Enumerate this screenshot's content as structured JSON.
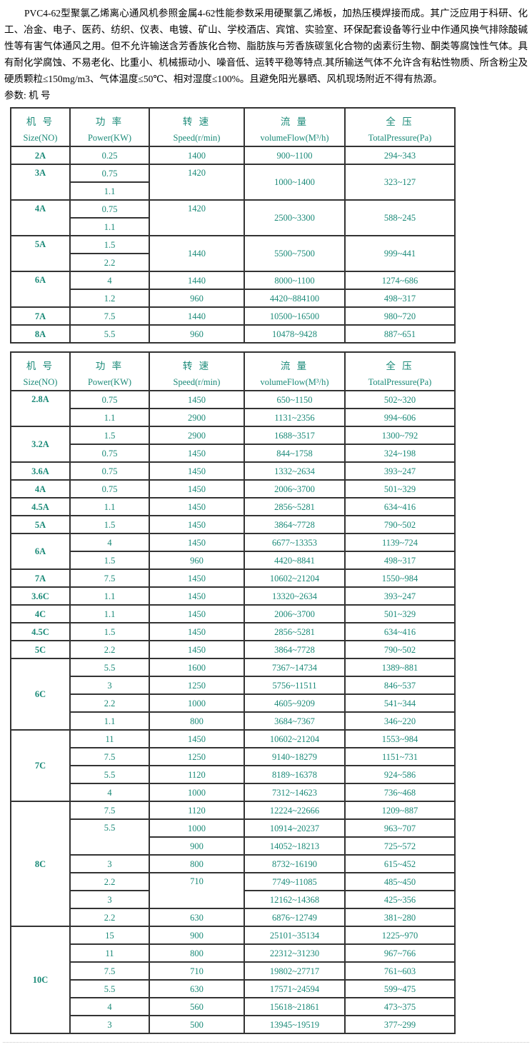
{
  "colors": {
    "table_text": "#1b8a78",
    "border": "#333333",
    "body_text": "#000000"
  },
  "page": {
    "intro_text": "PVC4-62型聚氯乙烯离心通风机参照金属4-62性能参数采用硬聚氯乙烯板，加热压模焊接而成。其广泛应用于科研、化工、冶金、电子、医药、纺织、仪表、电镀、矿山、学校酒店、宾馆、实验室、环保配套设备等行业中作通风换气排除酸碱性等有害气体通风之用。但不允许输送含芳香族化合物、脂肪族与芳香族碳氢化合物的卤素衍生物、酮类等腐蚀性气体。具有耐化学腐蚀、不易老化、比重小、机械振动小、噪音低、运转平稳等特点.其所输送气体不允许含有粘性物质、所含粉尘及硬质颗粒≤150mg/m3、气体温度≤50℃、相对湿度≤100%。且避免阳光暴晒、风机现场附近不得有热源。",
    "params_label": "参数: 机 号"
  },
  "table_header": {
    "columns": [
      {
        "key": "size",
        "zh": "机 号",
        "en": "Size(NO)"
      },
      {
        "key": "power",
        "zh": "功 率",
        "en": "Power(KW)"
      },
      {
        "key": "speed",
        "zh": "转 速",
        "en": "Speed(r/min)"
      },
      {
        "key": "flow",
        "zh": "流 量",
        "en": "volumeFlow(M³/h)"
      },
      {
        "key": "pressure",
        "zh": "全 压",
        "en": "TotalPressure(Pa)"
      }
    ]
  },
  "tables": [
    {
      "rows": [
        [
          {
            "t": "2A",
            "b": 1
          },
          {
            "t": "0.25"
          },
          {
            "t": "1400"
          },
          {
            "t": "900~1100"
          },
          {
            "t": "294~343"
          }
        ],
        [
          {
            "t": "3A",
            "b": 1,
            "rs": 2,
            "va": "top"
          },
          {
            "t": "0.75"
          },
          {
            "t": "1420",
            "rs": 2,
            "va": "top"
          },
          {
            "t": "1000~1400",
            "rs": 2
          },
          {
            "t": "323~127",
            "rs": 2
          }
        ],
        [
          {
            "t": "1.1"
          }
        ],
        [
          {
            "t": "4A",
            "b": 1,
            "rs": 2,
            "va": "top"
          },
          {
            "t": "0.75"
          },
          {
            "t": "1420",
            "rs": 2,
            "va": "top"
          },
          {
            "t": "2500~3300",
            "rs": 2
          },
          {
            "t": "588~245",
            "rs": 2
          }
        ],
        [
          {
            "t": "1.1"
          }
        ],
        [
          {
            "t": "5A",
            "b": 1,
            "rs": 2,
            "va": "top"
          },
          {
            "t": "1.5"
          },
          {
            "t": "1440",
            "rs": 2
          },
          {
            "t": "5500~7500",
            "rs": 2
          },
          {
            "t": "999~441",
            "rs": 2
          }
        ],
        [
          {
            "t": "2.2"
          }
        ],
        [
          {
            "t": "6A",
            "b": 1,
            "rs": 2,
            "va": "top"
          },
          {
            "t": "4"
          },
          {
            "t": "1440"
          },
          {
            "t": "8000~1100"
          },
          {
            "t": "1274~686"
          }
        ],
        [
          {
            "t": "1.2"
          },
          {
            "t": "960"
          },
          {
            "t": "4420~884100"
          },
          {
            "t": "498~317"
          }
        ],
        [
          {
            "t": "7A",
            "b": 1
          },
          {
            "t": "7.5"
          },
          {
            "t": "1440"
          },
          {
            "t": "10500~16500"
          },
          {
            "t": "980~720"
          }
        ],
        [
          {
            "t": "8A",
            "b": 1
          },
          {
            "t": "5.5"
          },
          {
            "t": "960"
          },
          {
            "t": "10478~9428"
          },
          {
            "t": "887~651"
          }
        ]
      ]
    },
    {
      "rows": [
        [
          {
            "t": "2.8A",
            "b": 1,
            "rs": 2,
            "va": "top"
          },
          {
            "t": "0.75"
          },
          {
            "t": "1450"
          },
          {
            "t": "650~1150"
          },
          {
            "t": "502~320"
          }
        ],
        [
          {
            "t": "1.1"
          },
          {
            "t": "2900"
          },
          {
            "t": "1131~2356"
          },
          {
            "t": "994~606"
          }
        ],
        [
          {
            "t": "3.2A",
            "b": 1,
            "rs": 2
          },
          {
            "t": "1.5"
          },
          {
            "t": "2900"
          },
          {
            "t": "1688~3517"
          },
          {
            "t": "1300~792"
          }
        ],
        [
          {
            "t": "0.75"
          },
          {
            "t": "1450"
          },
          {
            "t": "844~1758"
          },
          {
            "t": "324~198"
          }
        ],
        [
          {
            "t": "3.6A",
            "b": 1
          },
          {
            "t": "0.75"
          },
          {
            "t": "1450"
          },
          {
            "t": "1332~2634"
          },
          {
            "t": "393~247"
          }
        ],
        [
          {
            "t": "4A",
            "b": 1
          },
          {
            "t": "0.75"
          },
          {
            "t": "1450"
          },
          {
            "t": "2006~3700"
          },
          {
            "t": "501~329"
          }
        ],
        [
          {
            "t": "4.5A",
            "b": 1
          },
          {
            "t": "1.1"
          },
          {
            "t": "1450"
          },
          {
            "t": "2856~5281"
          },
          {
            "t": "634~416"
          }
        ],
        [
          {
            "t": "5A",
            "b": 1
          },
          {
            "t": "1.5"
          },
          {
            "t": "1450"
          },
          {
            "t": "3864~7728"
          },
          {
            "t": "790~502"
          }
        ],
        [
          {
            "t": "6A",
            "b": 1,
            "rs": 2
          },
          {
            "t": "4"
          },
          {
            "t": "1450"
          },
          {
            "t": "6677~13353"
          },
          {
            "t": "1139~724"
          }
        ],
        [
          {
            "t": "1.5"
          },
          {
            "t": "960"
          },
          {
            "t": "4420~8841"
          },
          {
            "t": "498~317"
          }
        ],
        [
          {
            "t": "7A",
            "b": 1
          },
          {
            "t": "7.5"
          },
          {
            "t": "1450"
          },
          {
            "t": "10602~21204"
          },
          {
            "t": "1550~984"
          }
        ],
        [
          {
            "t": "3.6C",
            "b": 1
          },
          {
            "t": "1.1"
          },
          {
            "t": "1450"
          },
          {
            "t": "13320~2634"
          },
          {
            "t": "393~247"
          }
        ],
        [
          {
            "t": "4C",
            "b": 1
          },
          {
            "t": "1.1"
          },
          {
            "t": "1450"
          },
          {
            "t": "2006~3700"
          },
          {
            "t": "501~329"
          }
        ],
        [
          {
            "t": "4.5C",
            "b": 1
          },
          {
            "t": "1.5"
          },
          {
            "t": "1450"
          },
          {
            "t": "2856~5281"
          },
          {
            "t": "634~416"
          }
        ],
        [
          {
            "t": "5C",
            "b": 1
          },
          {
            "t": "2.2"
          },
          {
            "t": "1450"
          },
          {
            "t": "3864~7728"
          },
          {
            "t": "790~502"
          }
        ],
        [
          {
            "t": "6C",
            "b": 1,
            "rs": 4
          },
          {
            "t": "5.5"
          },
          {
            "t": "1600"
          },
          {
            "t": "7367~14734"
          },
          {
            "t": "1389~881"
          }
        ],
        [
          {
            "t": "3"
          },
          {
            "t": "1250"
          },
          {
            "t": "5756~11511"
          },
          {
            "t": "846~537"
          }
        ],
        [
          {
            "t": "2.2"
          },
          {
            "t": "1000"
          },
          {
            "t": "4605~9209"
          },
          {
            "t": "541~344"
          }
        ],
        [
          {
            "t": "1.1"
          },
          {
            "t": "800"
          },
          {
            "t": "3684~7367"
          },
          {
            "t": "346~220"
          }
        ],
        [
          {
            "t": "7C",
            "b": 1,
            "rs": 4
          },
          {
            "t": "11"
          },
          {
            "t": "1450"
          },
          {
            "t": "10602~21204"
          },
          {
            "t": "1553~984"
          }
        ],
        [
          {
            "t": "7.5"
          },
          {
            "t": "1250"
          },
          {
            "t": "9140~18279"
          },
          {
            "t": "1151~731"
          }
        ],
        [
          {
            "t": "5.5"
          },
          {
            "t": "1120"
          },
          {
            "t": "8189~16378"
          },
          {
            "t": "924~586"
          }
        ],
        [
          {
            "t": "4"
          },
          {
            "t": "1000"
          },
          {
            "t": "7312~14623"
          },
          {
            "t": "736~468"
          }
        ],
        [
          {
            "t": "8C",
            "b": 1,
            "rs": 7
          },
          {
            "t": "7.5"
          },
          {
            "t": "1120"
          },
          {
            "t": "12224~22666"
          },
          {
            "t": "1209~887"
          }
        ],
        [
          {
            "t": "5.5",
            "rs": 2,
            "va": "top"
          },
          {
            "t": "1000"
          },
          {
            "t": "10914~20237"
          },
          {
            "t": "963~707"
          }
        ],
        [
          {
            "t": "900"
          },
          {
            "t": "14052~18213"
          },
          {
            "t": "725~572"
          }
        ],
        [
          {
            "t": "3"
          },
          {
            "t": "800"
          },
          {
            "t": "8732~16190"
          },
          {
            "t": "615~452"
          }
        ],
        [
          {
            "t": "2.2"
          },
          {
            "t": "710",
            "rs": 2,
            "va": "top"
          },
          {
            "t": "7749~11085"
          },
          {
            "t": "485~450"
          }
        ],
        [
          {
            "t": "3"
          },
          {
            "t": "12162~14368"
          },
          {
            "t": "425~356"
          }
        ],
        [
          {
            "t": "2.2"
          },
          {
            "t": "630"
          },
          {
            "t": "6876~12749"
          },
          {
            "t": "381~280"
          }
        ],
        [
          {
            "t": "10C",
            "b": 1,
            "rs": 6
          },
          {
            "t": "15"
          },
          {
            "t": "900"
          },
          {
            "t": "25101~35134"
          },
          {
            "t": "1225~970"
          }
        ],
        [
          {
            "t": "11"
          },
          {
            "t": "800"
          },
          {
            "t": "22312~31230"
          },
          {
            "t": "967~766"
          }
        ],
        [
          {
            "t": "7.5"
          },
          {
            "t": "710"
          },
          {
            "t": "19802~27717"
          },
          {
            "t": "761~603"
          }
        ],
        [
          {
            "t": "5.5"
          },
          {
            "t": "630"
          },
          {
            "t": "17571~24594"
          },
          {
            "t": "599~475"
          }
        ],
        [
          {
            "t": "4"
          },
          {
            "t": "560"
          },
          {
            "t": "15618~21861"
          },
          {
            "t": "473~375"
          }
        ],
        [
          {
            "t": "3"
          },
          {
            "t": "500"
          },
          {
            "t": "13945~19519"
          },
          {
            "t": "377~299"
          }
        ]
      ]
    }
  ]
}
